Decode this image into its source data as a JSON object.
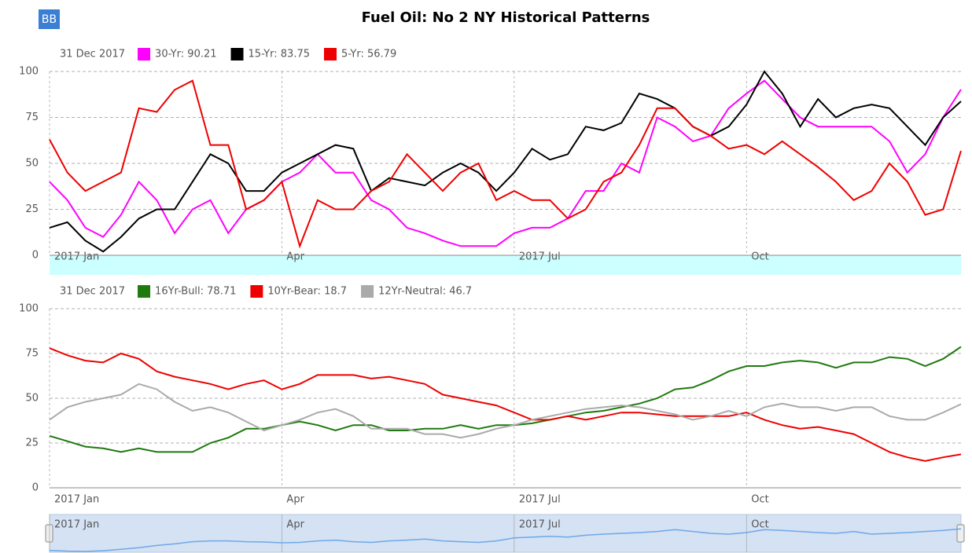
{
  "button": "BB",
  "chart_data": [
    {
      "type": "line",
      "title": "Fuel Oil: No 2 NY Historical Patterns",
      "legend_date": "31 Dec 2017",
      "categories": [
        "2017 Jan",
        null,
        null,
        null,
        null,
        null,
        null,
        null,
        null,
        null,
        null,
        null,
        null,
        "Apr",
        null,
        null,
        null,
        null,
        null,
        null,
        null,
        null,
        null,
        null,
        null,
        null,
        "2017 Jul",
        null,
        null,
        null,
        null,
        null,
        null,
        null,
        null,
        null,
        null,
        null,
        null,
        "Oct",
        null,
        null,
        null,
        null,
        null,
        null,
        null,
        null,
        null,
        null,
        null,
        null
      ],
      "ylim": [
        0,
        100
      ],
      "yticks": [
        0,
        25,
        50,
        75,
        100
      ],
      "grid": true,
      "series": [
        {
          "name": "30-Yr: 90.21",
          "color": "#ff00ff",
          "values": [
            40,
            30,
            15,
            10,
            22,
            40,
            30,
            12,
            25,
            30,
            12,
            25,
            30,
            40,
            45,
            55,
            45,
            45,
            30,
            25,
            15,
            12,
            8,
            5,
            5,
            5,
            12,
            15,
            15,
            20,
            35,
            35,
            50,
            45,
            75,
            70,
            62,
            65,
            80,
            88,
            95,
            85,
            75,
            70,
            70,
            70,
            70,
            62,
            45,
            55,
            75,
            90.21
          ]
        },
        {
          "name": "15-Yr: 83.75",
          "color": "#000000",
          "values": [
            15,
            18,
            8,
            2,
            10,
            20,
            25,
            25,
            40,
            55,
            50,
            35,
            35,
            45,
            50,
            55,
            60,
            58,
            35,
            42,
            40,
            38,
            45,
            50,
            45,
            35,
            45,
            58,
            52,
            55,
            70,
            68,
            72,
            88,
            85,
            80,
            70,
            65,
            70,
            82,
            100,
            88,
            70,
            85,
            75,
            80,
            82,
            80,
            70,
            60,
            75,
            83.75
          ]
        },
        {
          "name": "5-Yr: 56.79",
          "color": "#ee0000",
          "values": [
            63,
            45,
            35,
            40,
            45,
            80,
            78,
            90,
            95,
            60,
            60,
            25,
            30,
            40,
            5,
            30,
            25,
            25,
            35,
            40,
            55,
            45,
            35,
            45,
            50,
            30,
            35,
            30,
            30,
            20,
            25,
            40,
            45,
            60,
            80,
            80,
            70,
            65,
            58,
            60,
            55,
            62,
            55,
            48,
            40,
            30,
            35,
            50,
            40,
            22,
            25,
            56.79
          ]
        }
      ]
    },
    {
      "type": "line",
      "legend_date": "31 Dec 2017",
      "categories": [
        "2017 Jan",
        null,
        null,
        null,
        null,
        null,
        null,
        null,
        null,
        null,
        null,
        null,
        null,
        "Apr",
        null,
        null,
        null,
        null,
        null,
        null,
        null,
        null,
        null,
        null,
        null,
        null,
        "2017 Jul",
        null,
        null,
        null,
        null,
        null,
        null,
        null,
        null,
        null,
        null,
        null,
        null,
        "Oct",
        null,
        null,
        null,
        null,
        null,
        null,
        null,
        null,
        null,
        null,
        null,
        null
      ],
      "ylim": [
        0,
        100
      ],
      "yticks": [
        0,
        25,
        50,
        75,
        100
      ],
      "grid": true,
      "series": [
        {
          "name": "16Yr-Bull: 78.71",
          "color": "#1e7a0e",
          "values": [
            29,
            26,
            23,
            22,
            20,
            22,
            20,
            20,
            20,
            25,
            28,
            33,
            33,
            35,
            37,
            35,
            32,
            35,
            35,
            32,
            32,
            33,
            33,
            35,
            33,
            35,
            35,
            36,
            38,
            40,
            42,
            43,
            45,
            47,
            50,
            55,
            56,
            60,
            65,
            68,
            68,
            70,
            71,
            70,
            67,
            70,
            70,
            73,
            72,
            68,
            72,
            78.71
          ]
        },
        {
          "name": "10Yr-Bear: 18.7",
          "color": "#ee0000",
          "values": [
            78,
            74,
            71,
            70,
            75,
            72,
            65,
            62,
            60,
            58,
            55,
            58,
            60,
            55,
            58,
            63,
            63,
            63,
            61,
            62,
            60,
            58,
            52,
            50,
            48,
            46,
            42,
            38,
            38,
            40,
            38,
            40,
            42,
            42,
            41,
            40,
            40,
            40,
            40,
            42,
            38,
            35,
            33,
            34,
            32,
            30,
            25,
            20,
            17,
            15,
            17,
            18.7
          ]
        },
        {
          "name": "12Yr-Neutral: 46.7",
          "color": "#aaaaaa",
          "values": [
            38,
            45,
            48,
            50,
            52,
            58,
            55,
            48,
            43,
            45,
            42,
            37,
            32,
            35,
            38,
            42,
            44,
            40,
            33,
            33,
            33,
            30,
            30,
            28,
            30,
            33,
            35,
            38,
            40,
            42,
            44,
            45,
            46,
            45,
            43,
            41,
            38,
            40,
            43,
            40,
            45,
            47,
            45,
            45,
            43,
            45,
            45,
            40,
            38,
            38,
            42,
            46.7
          ]
        }
      ]
    },
    {
      "type": "navigator",
      "categories": [
        "2017 Jan",
        null,
        null,
        null,
        null,
        null,
        null,
        null,
        null,
        null,
        null,
        null,
        null,
        "Apr",
        null,
        null,
        null,
        null,
        null,
        null,
        null,
        null,
        null,
        null,
        null,
        null,
        "2017 Jul",
        null,
        null,
        null,
        null,
        null,
        null,
        null,
        null,
        null,
        null,
        null,
        null,
        "Oct",
        null,
        null,
        null,
        null,
        null,
        null,
        null,
        null,
        null,
        null,
        null,
        null
      ],
      "ylim": [
        0,
        100
      ],
      "color": "#6ea8e8",
      "values": [
        5,
        3,
        2,
        4,
        8,
        12,
        18,
        22,
        28,
        30,
        30,
        28,
        27,
        25,
        26,
        30,
        32,
        28,
        26,
        30,
        32,
        35,
        30,
        28,
        26,
        30,
        38,
        40,
        42,
        40,
        45,
        48,
        50,
        52,
        55,
        60,
        55,
        50,
        48,
        52,
        60,
        58,
        55,
        52,
        50,
        55,
        48,
        50,
        52,
        55,
        58,
        62
      ]
    }
  ]
}
